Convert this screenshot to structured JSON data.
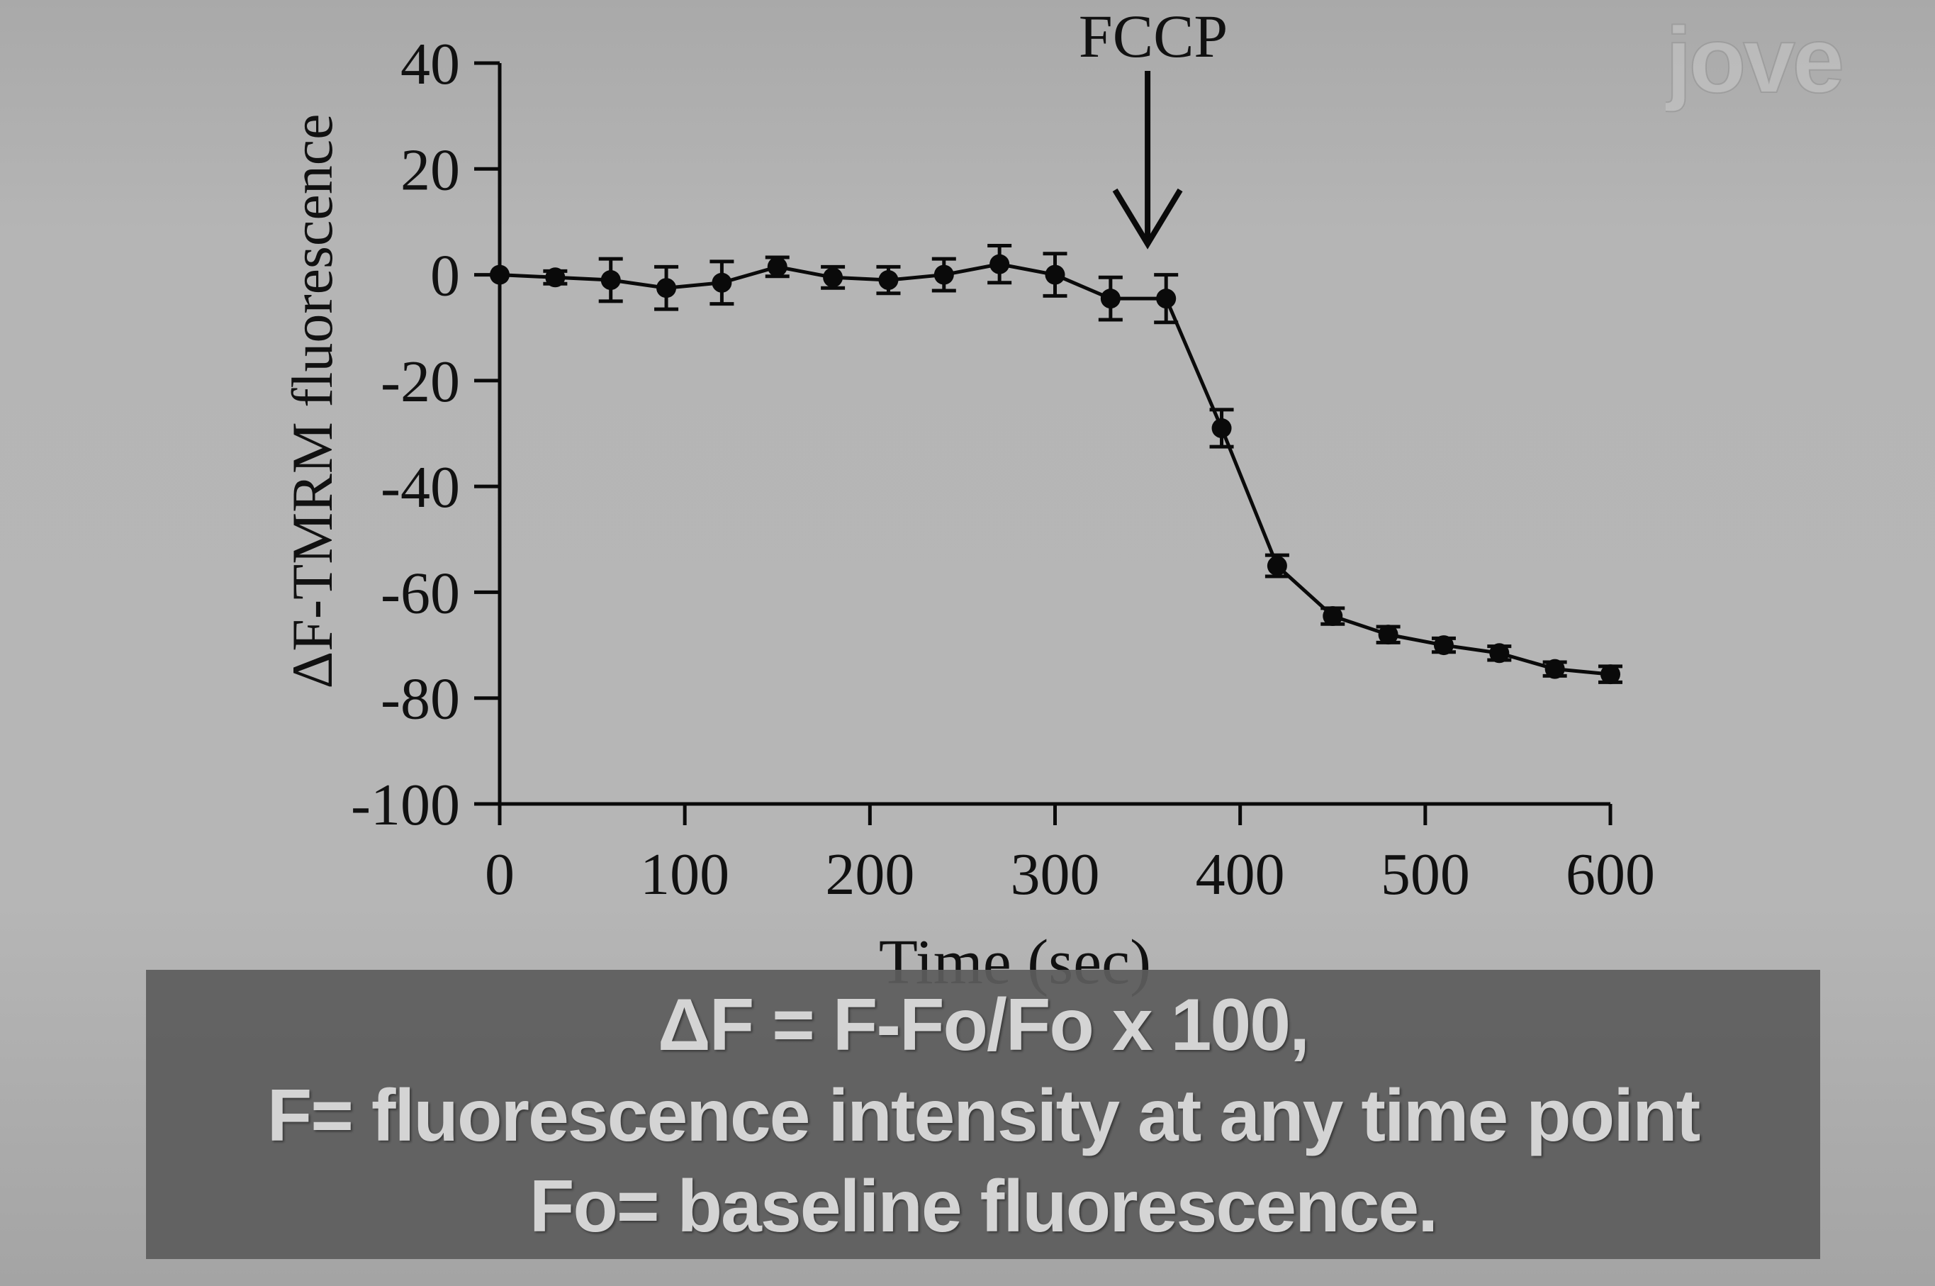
{
  "chart_data": {
    "type": "line",
    "xlabel": "Time (sec)",
    "ylabel": "ΔF-TMRM fluorescence",
    "xlim": [
      0,
      600
    ],
    "ylim": [
      -100,
      40
    ],
    "x_ticks": [
      0,
      100,
      200,
      300,
      400,
      500,
      600
    ],
    "y_ticks": [
      40,
      20,
      0,
      -20,
      -40,
      -60,
      -80,
      -100
    ],
    "x_tick_labels": [
      "0",
      "100",
      "200",
      "300",
      "400",
      "500",
      "600"
    ],
    "y_tick_labels": [
      "40",
      "20",
      "0",
      "-20",
      "-40",
      "-60",
      "-80",
      "-100"
    ],
    "grid": false,
    "legend": "none",
    "series": [
      {
        "x": [
          0,
          30,
          60,
          90,
          120,
          150,
          180,
          210,
          240,
          270,
          300,
          330,
          360,
          390,
          420,
          450,
          480,
          510,
          540,
          570,
          600
        ],
        "y": [
          0,
          -0.5,
          -1,
          -2.5,
          -1.5,
          1.5,
          -0.5,
          -1,
          0,
          2,
          0,
          -4.5,
          -4.5,
          -29,
          -55,
          -64.5,
          -68,
          -70,
          -71.5,
          -74.5,
          -75.5
        ],
        "error": [
          0,
          1.2,
          4,
          4,
          4,
          1.8,
          2,
          2.5,
          3,
          3.5,
          4,
          4,
          4.5,
          3.5,
          2,
          1.5,
          1.5,
          1.3,
          1.3,
          1.3,
          1.5
        ],
        "color": "#0a0a0a"
      }
    ],
    "annotations": [
      {
        "text": "FCCP",
        "x": 350,
        "type": "down-arrow"
      }
    ]
  },
  "caption": {
    "line1": "ΔF = F-Fo/Fo x 100,",
    "line2": "F= fluorescence intensity at any time point",
    "line3": "Fo= baseline fluorescence."
  },
  "watermark": {
    "text": "jove"
  }
}
